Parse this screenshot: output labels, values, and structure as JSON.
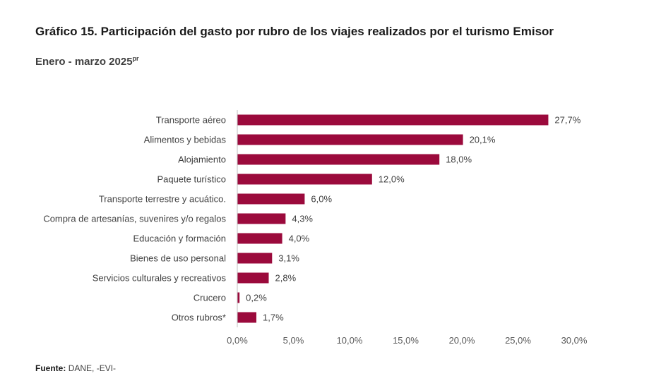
{
  "title": "Gráfico 15. Participación del gasto por rubro de los viajes realizados por el turismo Emisor",
  "subtitle": "Enero - marzo 2025",
  "subtitle_sup": "pr",
  "source_label": "Fuente:",
  "source_text": "DANE, -EVI-",
  "colors": {
    "bar": "#9b0a3c"
  },
  "chart_data": {
    "type": "bar",
    "orientation": "horizontal",
    "categories": [
      "Transporte aéreo",
      "Alimentos y bebidas",
      "Alojamiento",
      "Paquete turístico",
      "Transporte terrestre y acuático.",
      "Compra de artesanías, suvenires y/o regalos",
      "Educación y formación",
      "Bienes de uso personal",
      "Servicios culturales y recreativos",
      "Crucero",
      "Otros rubros*"
    ],
    "values": [
      27.7,
      20.1,
      18.0,
      12.0,
      6.0,
      4.3,
      4.0,
      3.1,
      2.8,
      0.2,
      1.7
    ],
    "value_labels": [
      "27,7%",
      "20,1%",
      "18,0%",
      "12,0%",
      "6,0%",
      "4,3%",
      "4,0%",
      "3,1%",
      "2,8%",
      "0,2%",
      "1,7%"
    ],
    "xlim": [
      0,
      30
    ],
    "xticks": [
      0,
      5,
      10,
      15,
      20,
      25,
      30
    ],
    "xtick_labels": [
      "0,0%",
      "5,0%",
      "10,0%",
      "15,0%",
      "20,0%",
      "25,0%",
      "30,0%"
    ],
    "grid": false,
    "legend": "none"
  }
}
